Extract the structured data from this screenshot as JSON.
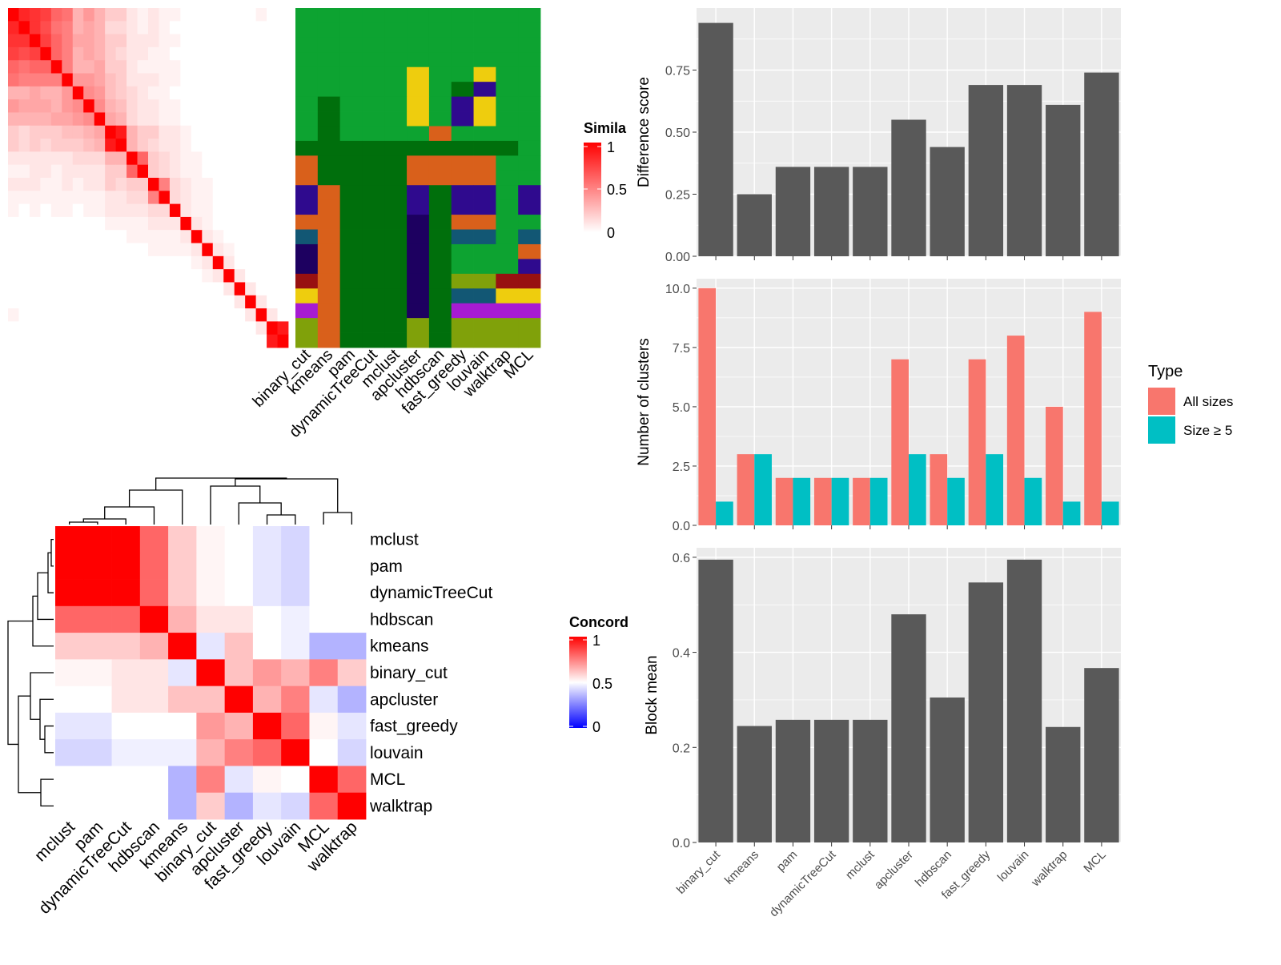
{
  "methods_sim_order": [
    "binary_cut",
    "kmeans",
    "pam",
    "dynamicTreeCut",
    "mclust",
    "apcluster",
    "hdbscan",
    "fast_greedy",
    "louvain",
    "walktrap",
    "MCL"
  ],
  "methods_conc_order": [
    "mclust",
    "pam",
    "dynamicTreeCut",
    "hdbscan",
    "kmeans",
    "binary_cut",
    "apcluster",
    "fast_greedy",
    "louvain",
    "MCL",
    "walktrap"
  ],
  "legends": {
    "similarity": {
      "title": "Simila",
      "ticks": [
        "1",
        "0.5",
        "0"
      ],
      "colors": [
        "#ffffff",
        "#ff0000"
      ]
    },
    "concordance": {
      "title": "Concord",
      "ticks": [
        "1",
        "0.5",
        "0"
      ],
      "colors": [
        "#0000ff",
        "#ffffff",
        "#ff0000"
      ]
    },
    "type": {
      "title": "Type",
      "entries": [
        {
          "label": "All sizes",
          "color": "#F8766D"
        },
        {
          "label": "Size ≥ 5",
          "color": "#00BFC4"
        }
      ]
    }
  },
  "chart_data": [
    {
      "type": "heatmap",
      "title": "",
      "value_range": [
        0,
        1
      ],
      "rows": 26,
      "values": [
        [
          1,
          0.85,
          0.8,
          0.75,
          0.6,
          0.55,
          0.3,
          0.4,
          0.3,
          0.2,
          0.2,
          0.1,
          0.05,
          0.1,
          0.05,
          0.05,
          0,
          0,
          0,
          0,
          0,
          0,
          0,
          0.05,
          0,
          0
        ],
        [
          0.85,
          1,
          0.8,
          0.7,
          0.55,
          0.5,
          0.3,
          0.35,
          0.3,
          0.15,
          0.15,
          0.1,
          0.05,
          0.1,
          0.05,
          0,
          0,
          0,
          0,
          0,
          0,
          0,
          0,
          0,
          0,
          0
        ],
        [
          0.8,
          0.8,
          1,
          0.75,
          0.6,
          0.5,
          0.35,
          0.35,
          0.3,
          0.2,
          0.2,
          0.1,
          0.1,
          0.1,
          0.05,
          0.05,
          0,
          0,
          0,
          0,
          0,
          0,
          0,
          0,
          0,
          0
        ],
        [
          0.75,
          0.7,
          0.75,
          1,
          0.6,
          0.5,
          0.3,
          0.35,
          0.3,
          0.2,
          0.15,
          0.1,
          0.1,
          0.05,
          0.05,
          0,
          0,
          0,
          0,
          0,
          0,
          0,
          0,
          0,
          0,
          0
        ],
        [
          0.6,
          0.55,
          0.6,
          0.6,
          1,
          0.5,
          0.3,
          0.3,
          0.35,
          0.2,
          0.2,
          0.1,
          0.05,
          0.05,
          0.05,
          0.05,
          0,
          0,
          0,
          0,
          0,
          0,
          0,
          0,
          0,
          0
        ],
        [
          0.55,
          0.5,
          0.5,
          0.5,
          0.5,
          1,
          0.4,
          0.4,
          0.35,
          0.25,
          0.2,
          0.1,
          0.1,
          0.1,
          0.05,
          0.05,
          0,
          0,
          0,
          0,
          0,
          0,
          0,
          0,
          0,
          0
        ],
        [
          0.3,
          0.3,
          0.35,
          0.3,
          0.3,
          0.4,
          1,
          0.45,
          0.4,
          0.25,
          0.2,
          0.15,
          0.1,
          0.05,
          0.05,
          0,
          0,
          0,
          0,
          0,
          0,
          0,
          0,
          0,
          0,
          0
        ],
        [
          0.4,
          0.35,
          0.35,
          0.35,
          0.3,
          0.4,
          0.45,
          1,
          0.45,
          0.3,
          0.25,
          0.15,
          0.1,
          0.1,
          0.05,
          0.05,
          0,
          0,
          0,
          0,
          0,
          0,
          0,
          0,
          0,
          0
        ],
        [
          0.3,
          0.3,
          0.3,
          0.3,
          0.35,
          0.35,
          0.4,
          0.45,
          1,
          0.35,
          0.3,
          0.15,
          0.1,
          0.1,
          0.05,
          0.05,
          0,
          0,
          0,
          0,
          0,
          0,
          0,
          0,
          0,
          0
        ],
        [
          0.2,
          0.15,
          0.2,
          0.2,
          0.2,
          0.25,
          0.25,
          0.3,
          0.35,
          1,
          0.9,
          0.3,
          0.2,
          0.2,
          0.1,
          0.1,
          0.05,
          0,
          0,
          0,
          0,
          0,
          0,
          0,
          0,
          0
        ],
        [
          0.2,
          0.15,
          0.2,
          0.15,
          0.2,
          0.2,
          0.2,
          0.25,
          0.3,
          0.9,
          1,
          0.3,
          0.2,
          0.15,
          0.1,
          0.1,
          0.05,
          0,
          0,
          0,
          0,
          0,
          0,
          0,
          0,
          0
        ],
        [
          0.1,
          0.1,
          0.1,
          0.1,
          0.1,
          0.1,
          0.15,
          0.15,
          0.15,
          0.3,
          0.3,
          1,
          0.6,
          0.2,
          0.15,
          0.1,
          0.05,
          0.05,
          0,
          0,
          0,
          0,
          0,
          0,
          0,
          0
        ],
        [
          0.05,
          0.05,
          0.1,
          0.1,
          0.05,
          0.1,
          0.1,
          0.1,
          0.1,
          0.2,
          0.2,
          0.6,
          1,
          0.2,
          0.15,
          0.1,
          0.05,
          0.05,
          0,
          0,
          0,
          0,
          0,
          0,
          0,
          0
        ],
        [
          0.1,
          0.1,
          0.1,
          0.05,
          0.05,
          0.1,
          0.05,
          0.1,
          0.1,
          0.2,
          0.15,
          0.2,
          0.2,
          1,
          0.5,
          0.15,
          0.1,
          0.05,
          0.05,
          0,
          0,
          0,
          0,
          0,
          0,
          0
        ],
        [
          0.05,
          0.05,
          0.05,
          0.05,
          0.05,
          0.05,
          0.05,
          0.05,
          0.05,
          0.1,
          0.1,
          0.15,
          0.15,
          0.5,
          1,
          0.15,
          0.1,
          0.05,
          0.05,
          0,
          0,
          0,
          0,
          0,
          0,
          0
        ],
        [
          0.05,
          0,
          0.05,
          0,
          0.05,
          0.05,
          0,
          0.05,
          0.05,
          0.1,
          0.1,
          0.1,
          0.1,
          0.15,
          0.15,
          1,
          0.1,
          0.05,
          0.05,
          0,
          0,
          0,
          0,
          0,
          0,
          0
        ],
        [
          0,
          0,
          0,
          0,
          0,
          0,
          0,
          0,
          0,
          0.05,
          0.05,
          0.05,
          0.05,
          0.1,
          0.1,
          0.1,
          1,
          0.1,
          0.05,
          0,
          0,
          0,
          0,
          0,
          0,
          0
        ],
        [
          0,
          0,
          0,
          0,
          0,
          0,
          0,
          0,
          0,
          0,
          0,
          0.05,
          0.05,
          0.05,
          0.05,
          0.05,
          0.1,
          1,
          0.1,
          0.05,
          0,
          0,
          0,
          0,
          0,
          0
        ],
        [
          0,
          0,
          0,
          0,
          0,
          0,
          0,
          0,
          0,
          0,
          0,
          0,
          0,
          0.05,
          0.05,
          0.05,
          0.05,
          0.1,
          1,
          0.1,
          0.05,
          0,
          0,
          0,
          0,
          0
        ],
        [
          0,
          0,
          0,
          0,
          0,
          0,
          0,
          0,
          0,
          0,
          0,
          0,
          0,
          0,
          0,
          0,
          0,
          0.05,
          0.1,
          1,
          0.1,
          0,
          0,
          0,
          0,
          0
        ],
        [
          0,
          0,
          0,
          0,
          0,
          0,
          0,
          0,
          0,
          0,
          0,
          0,
          0,
          0,
          0,
          0,
          0,
          0,
          0.05,
          0.1,
          1,
          0.1,
          0,
          0,
          0,
          0
        ],
        [
          0,
          0,
          0,
          0,
          0,
          0,
          0,
          0,
          0,
          0,
          0,
          0,
          0,
          0,
          0,
          0,
          0,
          0,
          0,
          0,
          0.1,
          1,
          0.1,
          0,
          0,
          0
        ],
        [
          0,
          0,
          0,
          0,
          0,
          0,
          0,
          0,
          0,
          0,
          0,
          0,
          0,
          0,
          0,
          0,
          0,
          0,
          0,
          0,
          0,
          0.1,
          1,
          0.1,
          0,
          0
        ],
        [
          0.05,
          0,
          0,
          0,
          0,
          0,
          0,
          0,
          0,
          0,
          0,
          0,
          0,
          0,
          0,
          0,
          0,
          0,
          0,
          0,
          0,
          0,
          0.1,
          1,
          0.1,
          0
        ],
        [
          0,
          0,
          0,
          0,
          0,
          0,
          0,
          0,
          0,
          0,
          0,
          0,
          0,
          0,
          0,
          0,
          0,
          0,
          0,
          0,
          0,
          0,
          0,
          0.1,
          1,
          0.9
        ],
        [
          0,
          0,
          0,
          0,
          0,
          0,
          0,
          0,
          0,
          0,
          0,
          0,
          0,
          0,
          0,
          0,
          0,
          0,
          0,
          0,
          0,
          0,
          0,
          0,
          0.9,
          1
        ]
      ]
    },
    {
      "type": "table",
      "title": "",
      "columns": [
        "binary_cut",
        "kmeans",
        "pam",
        "dynamicTreeCut",
        "mclust",
        "apcluster",
        "hdbscan",
        "fast_greedy",
        "louvain",
        "walktrap",
        "MCL"
      ],
      "palette": {
        "G": "#0da331",
        "D": "#006f0c",
        "O": "#d9601b",
        "N": "#2f0a8e",
        "B": "#1d0060",
        "Y": "#eecd0e",
        "T": "#125774",
        "M": "#981111",
        "P": "#a71bd2",
        "L": "#80a10a"
      },
      "rows": [
        "GGGGGGGGGGG",
        "GGGGGGGGGGG",
        "GGGGGGGGGGG",
        "GGGGGGGGGGG",
        "GGGGGYGGYGG",
        "GGGGGYGDNGG",
        "GDGGGYGNYGG",
        "GDGGGYGNYGG",
        "GDGGGGOGGGG",
        "DDDDDDDDDDG",
        "ODDDDOOOOGG",
        "ODDDDOOOOGG",
        "NODDDNDNNGN",
        "NODDDNDNNGN",
        "OODDDBDOOGG",
        "TODDDBDTTGT",
        "BODDDBDGGGO",
        "BODDDBDGGGN",
        "MODDDBDLLMM",
        "YODDDBDTTYY",
        "PODDDBDPPPP",
        "LODDDLDLLLL",
        "LODDDLDLLLL"
      ]
    },
    {
      "type": "heatmap",
      "title": "",
      "categories": [
        "mclust",
        "pam",
        "dynamicTreeCut",
        "hdbscan",
        "kmeans",
        "binary_cut",
        "apcluster",
        "fast_greedy",
        "louvain",
        "MCL",
        "walktrap"
      ],
      "value_range": [
        0,
        1
      ],
      "values": [
        [
          1,
          1,
          1,
          0.8,
          0.6,
          0.52,
          0.5,
          0.45,
          0.42,
          0.5,
          0.5
        ],
        [
          1,
          1,
          1,
          0.8,
          0.6,
          0.52,
          0.5,
          0.45,
          0.42,
          0.5,
          0.5
        ],
        [
          1,
          1,
          1,
          0.8,
          0.6,
          0.52,
          0.5,
          0.45,
          0.42,
          0.5,
          0.5
        ],
        [
          0.8,
          0.8,
          0.8,
          1,
          0.65,
          0.55,
          0.55,
          0.5,
          0.47,
          0.5,
          0.5
        ],
        [
          0.6,
          0.6,
          0.6,
          0.65,
          1,
          0.45,
          0.62,
          0.5,
          0.47,
          0.35,
          0.35
        ],
        [
          0.52,
          0.52,
          0.55,
          0.55,
          0.45,
          1,
          0.62,
          0.7,
          0.65,
          0.75,
          0.6
        ],
        [
          0.5,
          0.5,
          0.55,
          0.55,
          0.62,
          0.62,
          1,
          0.65,
          0.75,
          0.45,
          0.35
        ],
        [
          0.45,
          0.45,
          0.5,
          0.5,
          0.5,
          0.7,
          0.65,
          1,
          0.8,
          0.52,
          0.45
        ],
        [
          0.42,
          0.42,
          0.47,
          0.47,
          0.47,
          0.65,
          0.75,
          0.8,
          1,
          0.5,
          0.42
        ],
        [
          0.5,
          0.5,
          0.5,
          0.5,
          0.35,
          0.75,
          0.45,
          0.52,
          0.5,
          1,
          0.8
        ],
        [
          0.5,
          0.5,
          0.5,
          0.5,
          0.35,
          0.6,
          0.35,
          0.45,
          0.42,
          0.8,
          1
        ]
      ]
    },
    {
      "type": "bar",
      "title": "",
      "categories": [
        "binary_cut",
        "kmeans",
        "pam",
        "dynamicTreeCut",
        "mclust",
        "apcluster",
        "hdbscan",
        "fast_greedy",
        "louvain",
        "walktrap",
        "MCL"
      ],
      "values": [
        0.94,
        0.25,
        0.36,
        0.36,
        0.36,
        0.55,
        0.44,
        0.69,
        0.69,
        0.61,
        0.74
      ],
      "ylabel": "Difference score",
      "ylim": [
        0,
        1
      ],
      "yticks": [
        "0.00",
        "0.25",
        "0.50",
        "0.75"
      ]
    },
    {
      "type": "bar",
      "title": "",
      "categories": [
        "binary_cut",
        "kmeans",
        "pam",
        "dynamicTreeCut",
        "mclust",
        "apcluster",
        "hdbscan",
        "fast_greedy",
        "louvain",
        "walktrap",
        "MCL"
      ],
      "series": [
        {
          "name": "All sizes",
          "values": [
            10,
            3,
            2,
            2,
            2,
            7,
            3,
            7,
            8,
            5,
            9
          ]
        },
        {
          "name": "Size ≥ 5",
          "values": [
            1,
            3,
            2,
            2,
            2,
            3,
            2,
            3,
            2,
            1,
            1
          ]
        }
      ],
      "ylabel": "Number of clusters",
      "ylim": [
        0,
        10.4
      ],
      "yticks": [
        "0.0",
        "2.5",
        "5.0",
        "7.5",
        "10.0"
      ],
      "legend": "right"
    },
    {
      "type": "bar",
      "title": "",
      "categories": [
        "binary_cut",
        "kmeans",
        "pam",
        "dynamicTreeCut",
        "mclust",
        "apcluster",
        "hdbscan",
        "fast_greedy",
        "louvain",
        "walktrap",
        "MCL"
      ],
      "values": [
        0.595,
        0.245,
        0.258,
        0.258,
        0.258,
        0.48,
        0.305,
        0.547,
        0.595,
        0.243,
        0.367
      ],
      "ylabel": "Block mean",
      "ylim": [
        0,
        0.62
      ],
      "yticks": [
        "0.0",
        "0.2",
        "0.4",
        "0.6"
      ]
    }
  ]
}
